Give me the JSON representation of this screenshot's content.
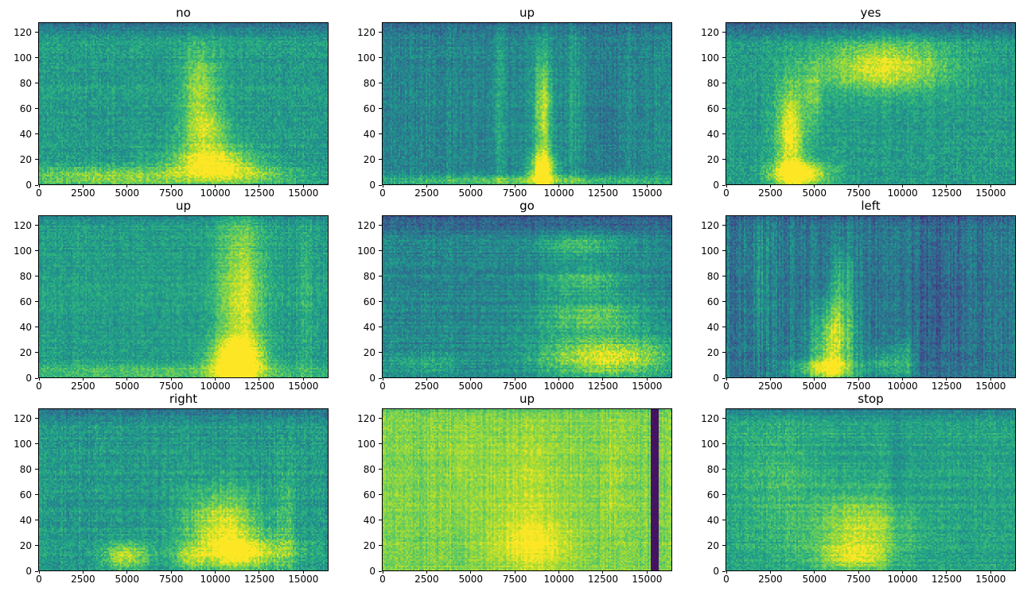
{
  "chart_data": {
    "type": "heatmap",
    "subtype": "spectrogram-grid",
    "colormap": "viridis",
    "layout": {
      "rows": 3,
      "cols": 3,
      "grid": false,
      "legend": "none"
    },
    "xlabel": "",
    "ylabel": "",
    "xlim": [
      0,
      16384
    ],
    "ylim": [
      0,
      128
    ],
    "xticks": [
      0,
      2500,
      5000,
      7500,
      10000,
      12500,
      15000
    ],
    "yticks": [
      0,
      20,
      40,
      60,
      80,
      100,
      120
    ],
    "colors": {
      "low": "#440154",
      "mid": "#21918c",
      "high": "#fde725",
      "axis": "#000000",
      "background": "#ffffff"
    },
    "plots": [
      {
        "title": "no",
        "seed": 1,
        "base": 0.55,
        "noise": 0.1,
        "col_noise": 0.03,
        "row_noise": 0.03,
        "top_dark": 0.18,
        "top_frac": 0.1,
        "blobs": [
          {
            "x": 0.56,
            "y": 0.62,
            "wx": 0.045,
            "wy": 0.16,
            "a": 0.3
          },
          {
            "x": 0.575,
            "y": 0.33,
            "wx": 0.055,
            "wy": 0.1,
            "a": 0.34
          },
          {
            "x": 0.6,
            "y": 0.13,
            "wx": 0.1,
            "wy": 0.07,
            "a": 0.46
          },
          {
            "x": 0.28,
            "y": 0.04,
            "wx": 0.26,
            "wy": 0.045,
            "a": 0.3
          },
          {
            "x": 0.75,
            "y": 0.05,
            "wx": 0.12,
            "wy": 0.04,
            "a": 0.18
          }
        ],
        "bars": []
      },
      {
        "title": "up",
        "seed": 2,
        "base": 0.46,
        "noise": 0.1,
        "col_noise": 0.05,
        "row_noise": 0.03,
        "top_dark": 0.12,
        "top_frac": 0.08,
        "blobs": [
          {
            "x": 0.555,
            "y": 0.45,
            "wx": 0.022,
            "wy": 0.28,
            "a": 0.42
          },
          {
            "x": 0.555,
            "y": 0.09,
            "wx": 0.032,
            "wy": 0.07,
            "a": 0.55
          },
          {
            "x": 0.5,
            "y": 0.02,
            "wx": 0.45,
            "wy": 0.022,
            "a": 0.3
          },
          {
            "x": 0.4,
            "y": 0.5,
            "wx": 0.018,
            "wy": 0.4,
            "a": 0.12
          },
          {
            "x": 0.66,
            "y": 0.5,
            "wx": 0.02,
            "wy": 0.4,
            "a": 0.1
          },
          {
            "x": 0.78,
            "y": 0.4,
            "wx": 0.025,
            "wy": 0.35,
            "a": -0.08
          }
        ],
        "bars": []
      },
      {
        "title": "yes",
        "seed": 3,
        "base": 0.55,
        "noise": 0.1,
        "col_noise": 0.03,
        "row_noise": 0.03,
        "top_dark": 0.22,
        "top_frac": 0.12,
        "blobs": [
          {
            "x": 0.55,
            "y": 0.73,
            "wx": 0.15,
            "wy": 0.11,
            "a": 0.42
          },
          {
            "x": 0.22,
            "y": 0.32,
            "wx": 0.035,
            "wy": 0.22,
            "a": 0.45
          },
          {
            "x": 0.25,
            "y": 0.06,
            "wx": 0.07,
            "wy": 0.055,
            "a": 0.55
          },
          {
            "x": 0.3,
            "y": 0.55,
            "wx": 0.025,
            "wy": 0.15,
            "a": 0.2
          }
        ],
        "bars": []
      },
      {
        "title": "up",
        "seed": 4,
        "base": 0.56,
        "noise": 0.09,
        "col_noise": 0.03,
        "row_noise": 0.03,
        "top_dark": 0.1,
        "top_frac": 0.06,
        "blobs": [
          {
            "x": 0.7,
            "y": 0.45,
            "wx": 0.055,
            "wy": 0.42,
            "a": 0.38
          },
          {
            "x": 0.685,
            "y": 0.1,
            "wx": 0.065,
            "wy": 0.09,
            "a": 0.5
          },
          {
            "x": 0.45,
            "y": 0.03,
            "wx": 0.45,
            "wy": 0.035,
            "a": 0.18
          },
          {
            "x": 0.93,
            "y": 0.5,
            "wx": 0.015,
            "wy": 0.45,
            "a": 0.1
          }
        ],
        "bars": []
      },
      {
        "title": "go",
        "seed": 5,
        "base": 0.46,
        "noise": 0.1,
        "col_noise": 0.03,
        "row_noise": 0.05,
        "top_dark": 0.18,
        "top_frac": 0.14,
        "blobs": [
          {
            "x": 0.78,
            "y": 0.12,
            "wx": 0.17,
            "wy": 0.09,
            "a": 0.5
          },
          {
            "x": 0.72,
            "y": 0.38,
            "wx": 0.13,
            "wy": 0.07,
            "a": 0.3
          },
          {
            "x": 0.7,
            "y": 0.6,
            "wx": 0.11,
            "wy": 0.06,
            "a": 0.26
          },
          {
            "x": 0.68,
            "y": 0.82,
            "wx": 0.1,
            "wy": 0.055,
            "a": 0.22
          },
          {
            "x": 0.15,
            "y": 0.08,
            "wx": 0.12,
            "wy": 0.05,
            "a": 0.15
          }
        ],
        "bars": []
      },
      {
        "title": "left",
        "seed": 6,
        "base": 0.4,
        "noise": 0.1,
        "col_noise": 0.08,
        "row_noise": 0.03,
        "top_dark": 0.1,
        "top_frac": 0.08,
        "blobs": [
          {
            "x": 0.37,
            "y": 0.22,
            "wx": 0.05,
            "wy": 0.17,
            "a": 0.48
          },
          {
            "x": 0.345,
            "y": 0.05,
            "wx": 0.075,
            "wy": 0.05,
            "a": 0.45
          },
          {
            "x": 0.4,
            "y": 0.55,
            "wx": 0.03,
            "wy": 0.18,
            "a": 0.22
          },
          {
            "x": 0.55,
            "y": 0.08,
            "wx": 0.05,
            "wy": 0.06,
            "a": 0.22
          },
          {
            "x": 0.73,
            "y": 0.5,
            "wx": 0.07,
            "wy": 0.45,
            "a": -0.1
          },
          {
            "x": 0.62,
            "y": 0.1,
            "wx": 0.025,
            "wy": 0.1,
            "a": 0.18
          },
          {
            "x": 0.12,
            "y": 0.6,
            "wx": 0.02,
            "wy": 0.3,
            "a": 0.12
          }
        ],
        "bars": []
      },
      {
        "title": "right",
        "seed": 7,
        "base": 0.54,
        "noise": 0.1,
        "col_noise": 0.04,
        "row_noise": 0.04,
        "top_dark": 0.18,
        "top_frac": 0.09,
        "blobs": [
          {
            "x": 0.64,
            "y": 0.26,
            "wx": 0.09,
            "wy": 0.16,
            "a": 0.42
          },
          {
            "x": 0.72,
            "y": 0.1,
            "wx": 0.11,
            "wy": 0.07,
            "a": 0.36
          },
          {
            "x": 0.3,
            "y": 0.08,
            "wx": 0.055,
            "wy": 0.06,
            "a": 0.36
          },
          {
            "x": 0.52,
            "y": 0.07,
            "wx": 0.04,
            "wy": 0.05,
            "a": 0.2
          },
          {
            "x": 0.86,
            "y": 0.3,
            "wx": 0.02,
            "wy": 0.25,
            "a": 0.15
          }
        ],
        "bars": []
      },
      {
        "title": "up",
        "seed": 8,
        "base": 0.8,
        "noise": 0.07,
        "col_noise": 0.04,
        "row_noise": 0.03,
        "top_dark": 0.06,
        "top_frac": 0.06,
        "blobs": [
          {
            "x": 0.52,
            "y": 0.16,
            "wx": 0.09,
            "wy": 0.11,
            "a": 0.22
          },
          {
            "x": 0.5,
            "y": 0.55,
            "wx": 0.1,
            "wy": 0.25,
            "a": 0.08
          },
          {
            "x": 0.27,
            "y": 0.7,
            "wx": 0.02,
            "wy": 0.2,
            "a": 0.08
          },
          {
            "x": 0.8,
            "y": 0.6,
            "wx": 0.015,
            "wy": 0.25,
            "a": 0.08
          }
        ],
        "bars": [
          {
            "x": 0.945,
            "w": 0.03,
            "v": 0.05
          }
        ]
      },
      {
        "title": "stop",
        "seed": 9,
        "base": 0.58,
        "noise": 0.09,
        "col_noise": 0.03,
        "row_noise": 0.04,
        "top_dark": 0.15,
        "top_frac": 0.1,
        "blobs": [
          {
            "x": 0.47,
            "y": 0.27,
            "wx": 0.11,
            "wy": 0.14,
            "a": 0.32
          },
          {
            "x": 0.44,
            "y": 0.08,
            "wx": 0.09,
            "wy": 0.06,
            "a": 0.3
          },
          {
            "x": 0.18,
            "y": 0.5,
            "wx": 0.1,
            "wy": 0.3,
            "a": 0.1
          },
          {
            "x": 0.6,
            "y": 0.5,
            "wx": 0.02,
            "wy": 0.4,
            "a": -0.08
          }
        ],
        "bars": []
      }
    ]
  }
}
